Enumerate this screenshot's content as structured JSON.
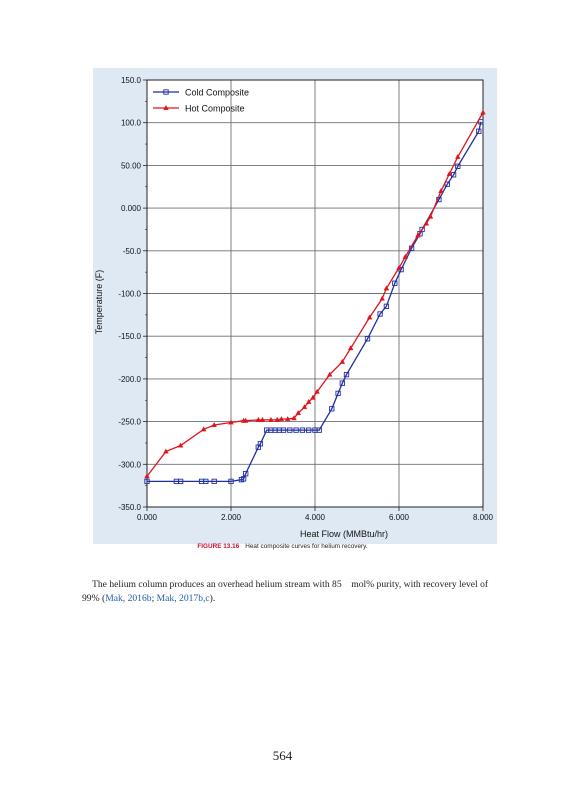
{
  "figure": {
    "label": "FIGURE 13.16",
    "caption": "Heat composite curves for helium recovery."
  },
  "paragraph": {
    "text_1": "The helium column produces an overhead helium stream with 85",
    "text_2": "mol% purity, with recovery level of 99% (",
    "ref_1": "Mak, 2016b",
    "sep": "; ",
    "ref_2": "Mak, 2017b,c",
    "text_3": ")."
  },
  "page_number": "564",
  "colors": {
    "cold": "#1f2fa3",
    "hot": "#e0141c",
    "grid": "#6f6f7a",
    "background": "#dfe9f4"
  },
  "chart_data": {
    "type": "line",
    "xlabel": "Heat Flow (MMBtu/hr)",
    "ylabel": "Temperature (F)",
    "xlim": [
      0,
      8
    ],
    "ylim": [
      -350,
      150
    ],
    "x_ticks": [
      "0.000",
      "2.000",
      "4.000",
      "6.000",
      "8.000"
    ],
    "y_ticks": [
      "150.0",
      "100.0",
      "50.00",
      "0.000",
      "-50.0",
      "-100.0",
      "-150.0",
      "-200.0",
      "-250.0",
      "-300.0",
      "-350.0"
    ],
    "grid": true,
    "legend_position": "top-left",
    "series": [
      {
        "name": "Cold Composite",
        "marker": "square",
        "color": "#1f2fa3",
        "x": [
          0,
          0.7,
          0.8,
          1.3,
          1.4,
          1.6,
          2.0,
          2.25,
          2.3,
          2.35,
          2.65,
          2.7,
          2.85,
          2.95,
          3.05,
          3.15,
          3.25,
          3.4,
          3.55,
          3.7,
          3.85,
          4.0,
          4.1,
          4.4,
          4.55,
          4.65,
          4.75,
          5.25,
          5.55,
          5.7,
          5.9,
          6.05,
          6.3,
          6.5,
          6.55,
          6.95,
          7.15,
          7.3,
          7.4,
          7.9,
          7.95
        ],
        "y": [
          -320,
          -320,
          -320,
          -320,
          -320,
          -320,
          -320,
          -318,
          -317,
          -311,
          -280,
          -276,
          -260,
          -260,
          -260,
          -260,
          -260,
          -260,
          -260,
          -260,
          -260,
          -260,
          -260,
          -235,
          -217,
          -205,
          -195,
          -153,
          -124,
          -115,
          -88,
          -72,
          -47,
          -30,
          -25,
          10,
          28,
          39,
          49,
          90,
          101
        ]
      },
      {
        "name": "Hot Composite",
        "marker": "triangle",
        "color": "#e0141c",
        "x": [
          0,
          0.45,
          0.8,
          1.35,
          1.6,
          2.0,
          2.3,
          2.35,
          2.65,
          2.75,
          2.95,
          3.1,
          3.2,
          3.35,
          3.5,
          3.6,
          3.75,
          3.85,
          3.95,
          4.05,
          4.35,
          4.65,
          4.85,
          5.3,
          5.6,
          5.7,
          6.0,
          6.15,
          6.45,
          6.65,
          6.75,
          7.0,
          7.2,
          7.4,
          8.0
        ],
        "y": [
          -314,
          -285,
          -278,
          -259,
          -254,
          -251,
          -249,
          -249,
          -248,
          -248,
          -248,
          -248,
          -247,
          -247,
          -246,
          -240,
          -233,
          -227,
          -222,
          -215,
          -195,
          -180,
          -164,
          -128,
          -106,
          -94,
          -70,
          -57,
          -32,
          -18,
          -10,
          20,
          40,
          60,
          112
        ]
      }
    ]
  }
}
